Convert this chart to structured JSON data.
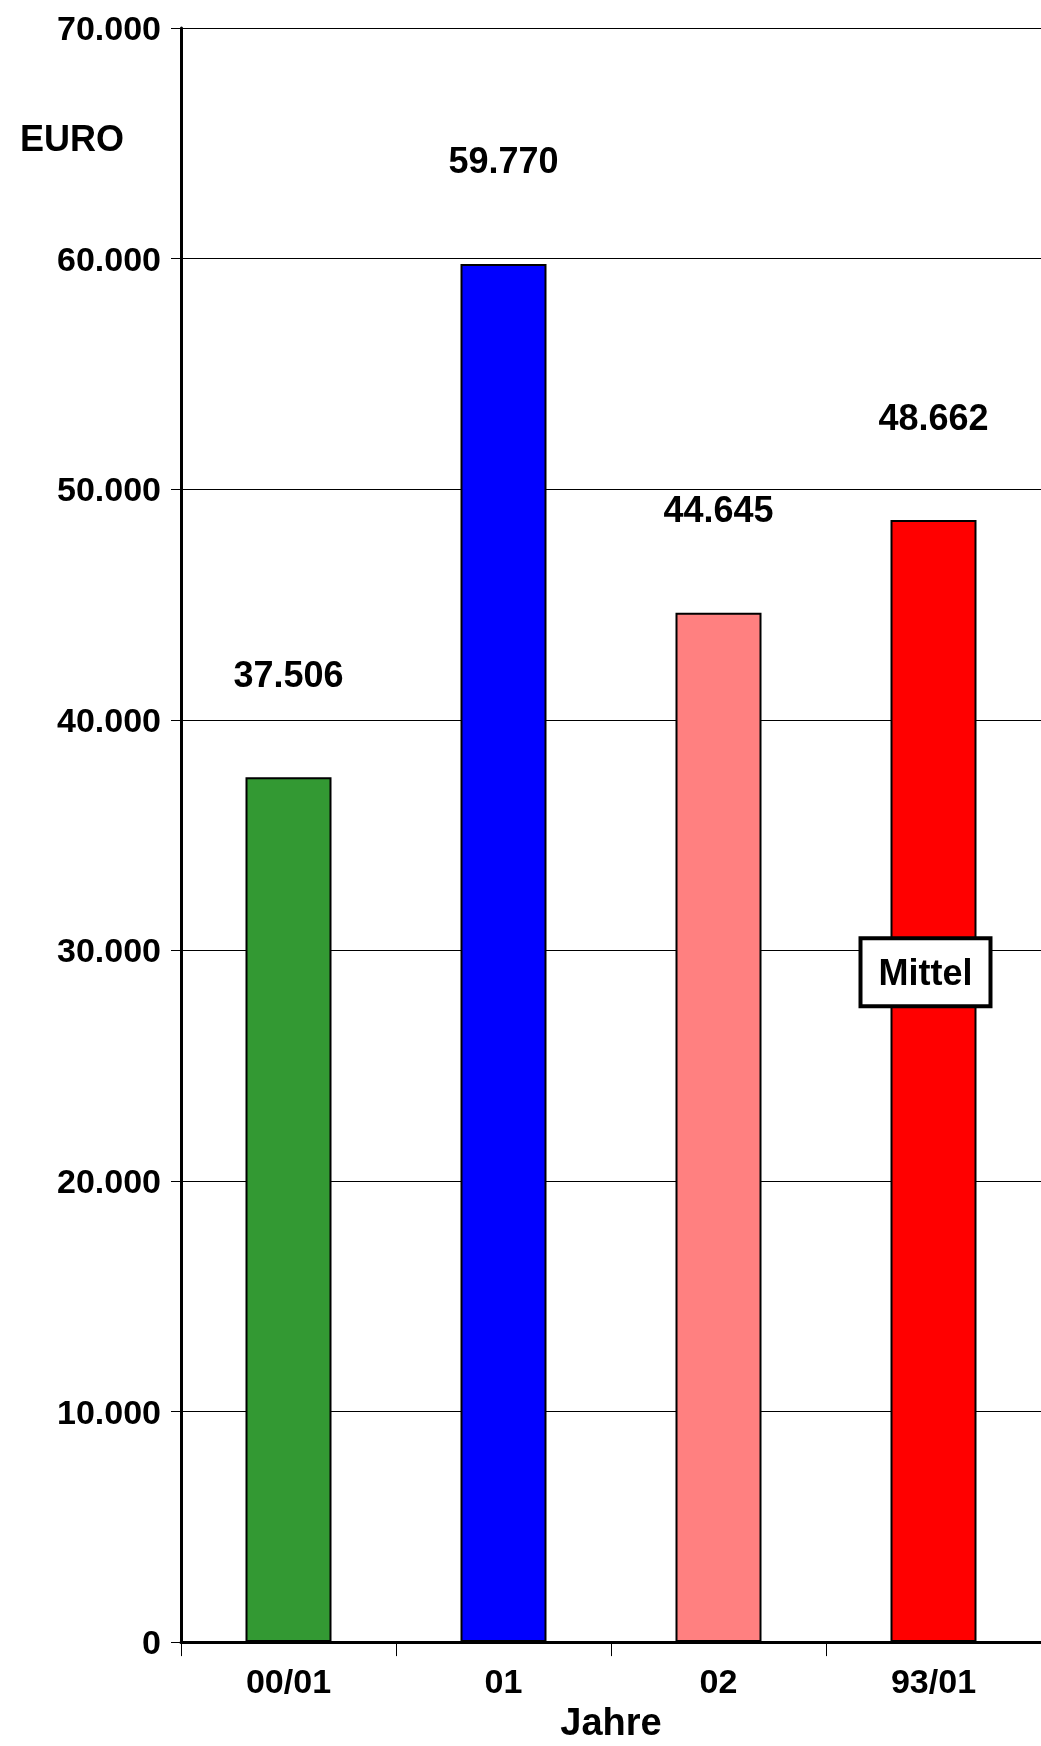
{
  "chart_data": {
    "type": "bar",
    "xlabel": "Jahre",
    "ylabel": "EURO",
    "categories": [
      "00/01",
      "01",
      "02",
      "93/01"
    ],
    "values": [
      37506,
      59770,
      44645,
      48662
    ],
    "colors": [
      "#339933",
      "#0000ff",
      "#ff8080",
      "#ff0000"
    ],
    "value_labels": [
      "37.506",
      "59.770",
      "44.645",
      "48.662"
    ],
    "ylim": [
      0,
      70000
    ],
    "yticks": [
      {
        "value": 0,
        "label": "0"
      },
      {
        "value": 10000,
        "label": "10.000"
      },
      {
        "value": 20000,
        "label": "20.000"
      },
      {
        "value": 30000,
        "label": "30.000"
      },
      {
        "value": 40000,
        "label": "40.000"
      },
      {
        "value": 50000,
        "label": "50.000"
      },
      {
        "value": 60000,
        "label": "60.000"
      },
      {
        "value": 70000,
        "label": "70.000"
      }
    ],
    "grid": "y",
    "annotations": [
      "Mittel"
    ]
  }
}
